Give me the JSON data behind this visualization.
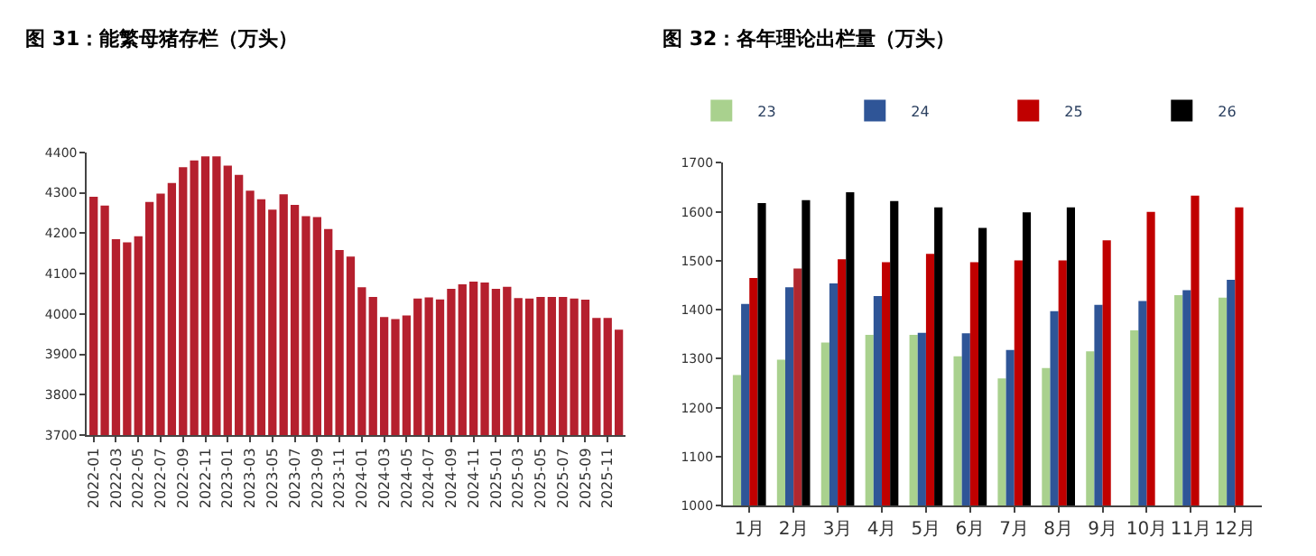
{
  "chart_data": [
    {
      "type": "bar",
      "title": "图 31：能繁母猪存栏（万头）",
      "categories": [
        "2022-01",
        null,
        "2022-03",
        null,
        "2022-05",
        null,
        "2022-07",
        null,
        "2022-09",
        null,
        "2022-11",
        null,
        "2023-01",
        null,
        "2023-03",
        null,
        "2023-05",
        null,
        "2023-07",
        null,
        "2023-09",
        null,
        "2023-11",
        null,
        "2024-01",
        null,
        "2024-03",
        null,
        "2024-05",
        null,
        "2024-07",
        null,
        "2024-09",
        null,
        "2024-11",
        null,
        "2025-01",
        null,
        "2025-03",
        null,
        "2025-05",
        null,
        "2025-07",
        null,
        "2025-09",
        null,
        "2025-11",
        null
      ],
      "series": [
        {
          "color": "#b5202e",
          "values": [
            4290,
            4268,
            4185,
            4177,
            4192,
            4277,
            4298,
            4324,
            4363,
            4380,
            4390,
            4390,
            4367,
            4344,
            4305,
            4284,
            4258,
            4296,
            4270,
            4242,
            4240,
            4210,
            4158,
            4142,
            4066,
            4042,
            3992,
            3987,
            3996,
            4038,
            4041,
            4036,
            4062,
            4073,
            4080,
            4078,
            4062,
            4067,
            4039,
            4038,
            4042,
            4042,
            4042,
            4038,
            4035,
            3990,
            3990,
            3961
          ]
        }
      ],
      "ylim": [
        3700,
        4400
      ],
      "yticks": [
        3700,
        3800,
        3900,
        4000,
        4100,
        4200,
        4300,
        4400
      ]
    },
    {
      "type": "bar",
      "title": "图 32：各年理论出栏量（万头）",
      "categories": [
        "1月",
        "2月",
        "3月",
        "4月",
        "5月",
        "6月",
        "7月",
        "8月",
        "9月",
        "10月",
        "11月",
        "12月"
      ],
      "series": [
        {
          "name": "23",
          "color": "#a9d18e",
          "values": [
            1267,
            1298,
            1333,
            1349,
            1349,
            1305,
            1260,
            1281,
            1315,
            1358,
            1430,
            1425
          ]
        },
        {
          "name": "24",
          "color": "#2f5597",
          "values": [
            1412,
            1446,
            1454,
            1428,
            1353,
            1352,
            1318,
            1397,
            1410,
            1418,
            1440,
            1461
          ]
        },
        {
          "name": "25",
          "color": "#c00000",
          "colors": [
            "#c00000",
            "#b0282f",
            "#c00000",
            "#c00000",
            "#c00000",
            "#c00000",
            "#c00000",
            "#c00000",
            "#c00000",
            "#c00000",
            "#c00000",
            "#c00000"
          ],
          "values": [
            1465,
            1484,
            1503,
            1497,
            1514,
            1497,
            1501,
            1501,
            1542,
            1600,
            1633,
            1609
          ]
        },
        {
          "name": "26",
          "color": "#000000",
          "values": [
            1618,
            1624,
            1640,
            1622,
            1609,
            1567,
            1599,
            1609,
            null,
            null,
            null,
            null
          ]
        }
      ],
      "ylim": [
        1000,
        1700
      ],
      "yticks": [
        1000,
        1100,
        1200,
        1300,
        1400,
        1500,
        1600,
        1700
      ],
      "legend": "top"
    }
  ]
}
